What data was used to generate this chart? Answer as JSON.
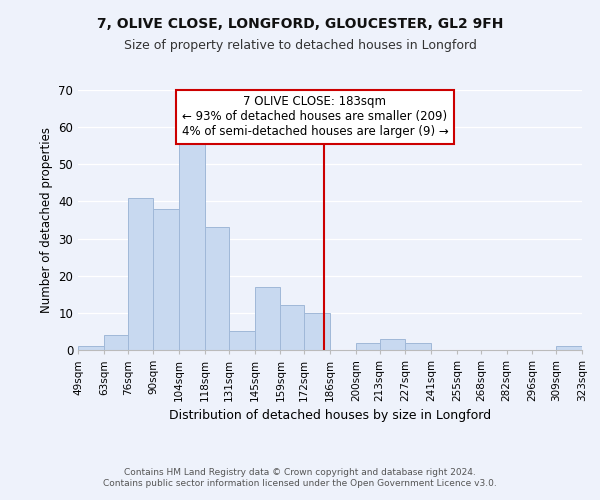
{
  "title": "7, OLIVE CLOSE, LONGFORD, GLOUCESTER, GL2 9FH",
  "subtitle": "Size of property relative to detached houses in Longford",
  "xlabel": "Distribution of detached houses by size in Longford",
  "ylabel": "Number of detached properties",
  "footer_lines": [
    "Contains HM Land Registry data © Crown copyright and database right 2024.",
    "Contains public sector information licensed under the Open Government Licence v3.0."
  ],
  "bar_edges": [
    49,
    63,
    76,
    90,
    104,
    118,
    131,
    145,
    159,
    172,
    186,
    200,
    213,
    227,
    241,
    255,
    268,
    282,
    296,
    309,
    323
  ],
  "bar_heights": [
    1,
    4,
    41,
    38,
    56,
    33,
    5,
    17,
    12,
    10,
    0,
    2,
    3,
    2,
    0,
    0,
    0,
    0,
    0,
    1
  ],
  "bar_color": "#c8d9f0",
  "bar_edgecolor": "#a0b8d8",
  "vline_x": 183,
  "vline_color": "#cc0000",
  "annotation_title": "7 OLIVE CLOSE: 183sqm",
  "annotation_line1": "← 93% of detached houses are smaller (209)",
  "annotation_line2": "4% of semi-detached houses are larger (9) →",
  "annotation_box_color": "#ffffff",
  "annotation_border_color": "#cc0000",
  "ylim": [
    0,
    70
  ],
  "yticks": [
    0,
    10,
    20,
    30,
    40,
    50,
    60,
    70
  ],
  "tick_labels": [
    "49sqm",
    "63sqm",
    "76sqm",
    "90sqm",
    "104sqm",
    "118sqm",
    "131sqm",
    "145sqm",
    "159sqm",
    "172sqm",
    "186sqm",
    "200sqm",
    "213sqm",
    "227sqm",
    "241sqm",
    "255sqm",
    "268sqm",
    "282sqm",
    "296sqm",
    "309sqm",
    "323sqm"
  ],
  "background_color": "#eef2fb"
}
